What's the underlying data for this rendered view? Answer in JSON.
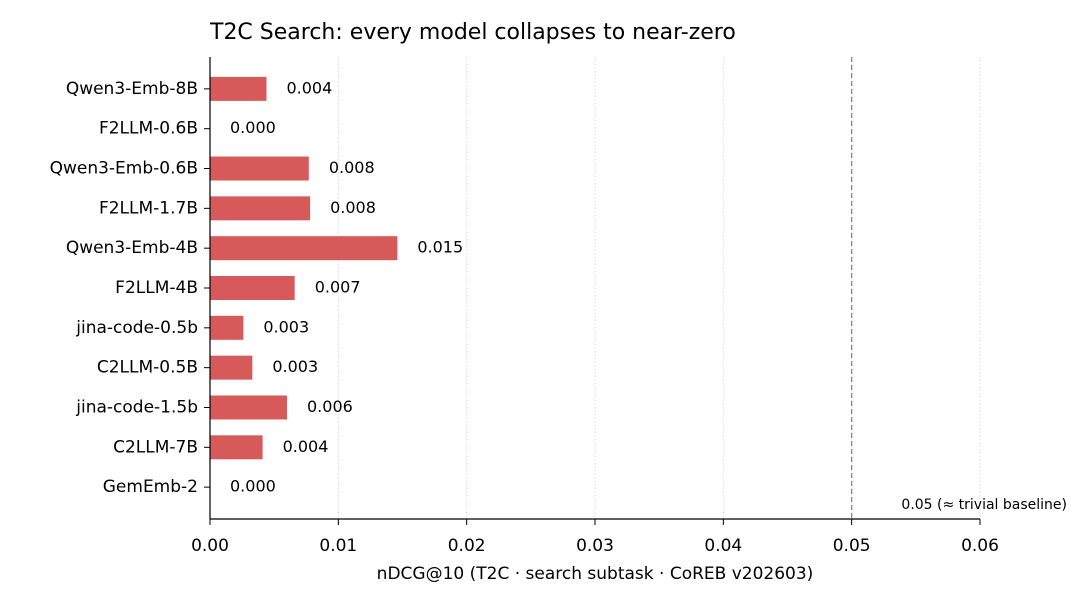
{
  "chart_data": {
    "type": "barh",
    "title": "T2C Search: every model collapses to near-zero",
    "x_label": "nDCG@10  (T2C  ·  search subtask  ·  CoREB v202603)",
    "categories": [
      "Qwen3-Emb-8B",
      "F2LLM-0.6B",
      "Qwen3-Emb-0.6B",
      "F2LLM-1.7B",
      "Qwen3-Emb-4B",
      "F2LLM-4B",
      "jina-code-0.5b",
      "C2LLM-0.5B",
      "jina-code-1.5b",
      "C2LLM-7B",
      "GemEmb-2"
    ],
    "values": [
      0.0044,
      0,
      0.0077,
      0.0078,
      0.0146,
      0.0066,
      0.0026,
      0.0033,
      0.006,
      0.0041,
      0
    ],
    "value_labels": [
      "0.004",
      "0.000",
      "0.008",
      "0.008",
      "0.015",
      "0.007",
      "0.003",
      "0.003",
      "0.006",
      "0.004",
      "0.000"
    ],
    "color": "#d65a5a",
    "xlim": [
      0,
      0.06
    ],
    "xticks": [
      {
        "value": 0,
        "label": "0.00"
      },
      {
        "value": 0.01,
        "label": "0.01"
      },
      {
        "value": 0.02,
        "label": "0.02"
      },
      {
        "value": 0.03,
        "label": "0.03"
      },
      {
        "value": 0.04,
        "label": "0.04"
      },
      {
        "value": 0.05,
        "label": "0.05"
      },
      {
        "value": 0.06,
        "label": "0.06"
      }
    ],
    "grid": true,
    "reference_line": {
      "value": 0.05,
      "label": "0.05 (≈ trivial baseline)"
    }
  }
}
